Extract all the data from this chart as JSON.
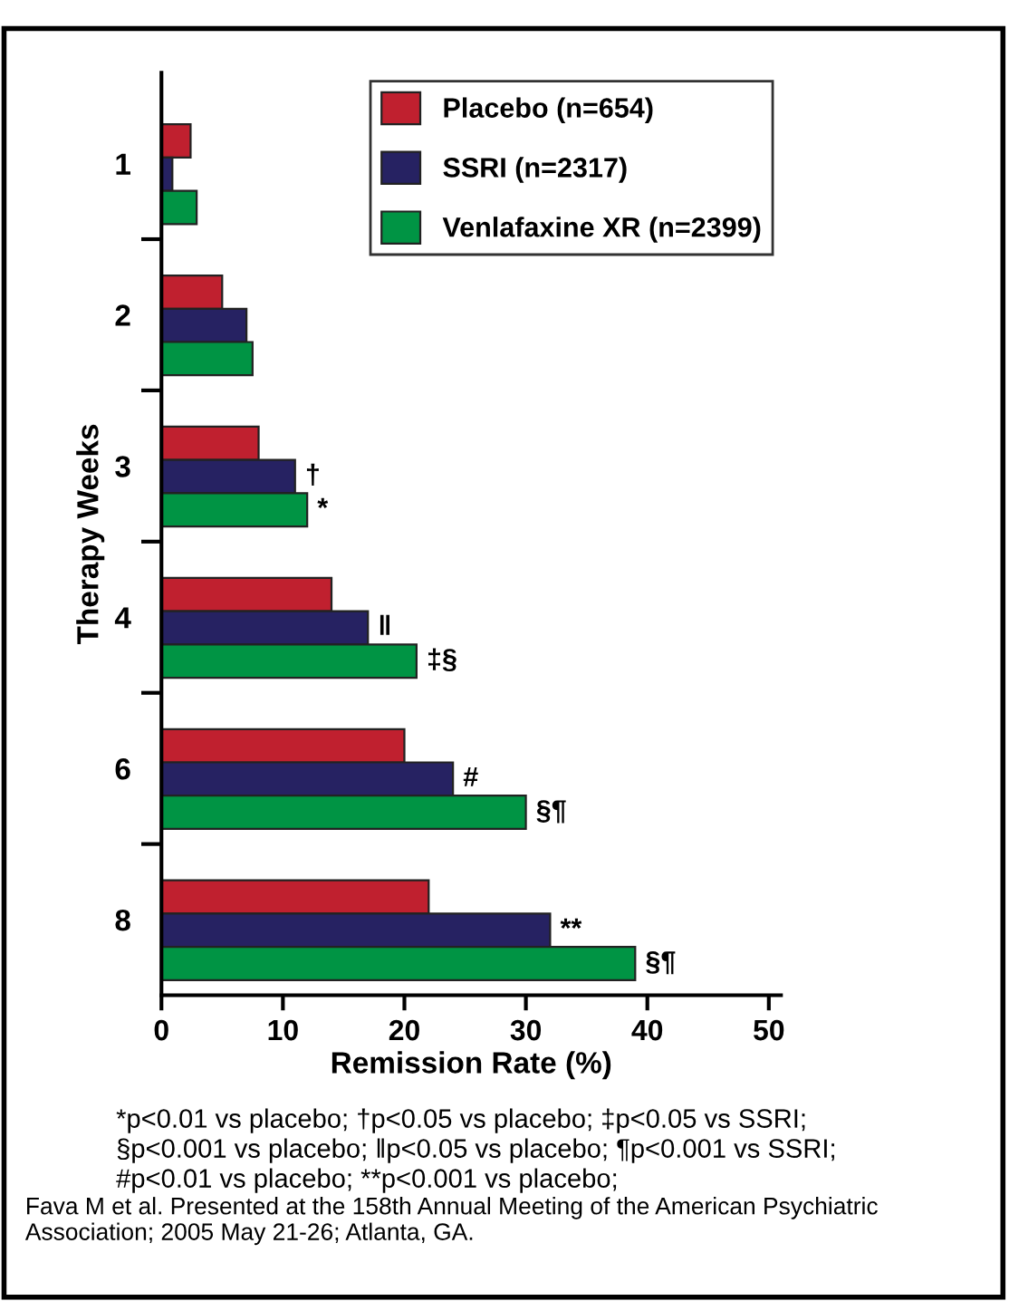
{
  "chart_data": {
    "type": "bar",
    "orientation": "horizontal",
    "categories": [
      "1",
      "2",
      "3",
      "4",
      "6",
      "8"
    ],
    "series": [
      {
        "name": "Placebo (n=654)",
        "color": "#c0202f",
        "values": [
          2.4,
          5,
          8,
          14,
          20,
          22
        ]
      },
      {
        "name": "SSRI (n=2317)",
        "color": "#262262",
        "values": [
          0.9,
          7,
          11,
          17,
          24,
          32
        ],
        "value_labels": [
          null,
          null,
          "†",
          "‖",
          "#",
          "**"
        ]
      },
      {
        "name": "Venlafaxine XR (n=2399)",
        "color": "#009444",
        "values": [
          2.9,
          7.5,
          12,
          21,
          30,
          39
        ],
        "value_labels": [
          null,
          null,
          "*",
          "‡§",
          "§¶",
          "§¶"
        ]
      }
    ],
    "xlabel": "Remission Rate (%)",
    "ylabel": "Therapy Weeks",
    "xlim": [
      0,
      51
    ],
    "xticks": [
      0,
      10,
      20,
      30,
      40,
      50
    ],
    "grid": false,
    "legend": "top right",
    "annotations": [
      "*p<0.01 vs placebo; †p<0.05 vs placebo; ‡p<0.05 vs SSRI;",
      "§p<0.001 vs placebo; ‖p<0.05 vs placebo; ¶p<0.001 vs SSRI;",
      "#p<0.01 vs placebo; **p<0.001 vs placebo;",
      "Fava M et al. Presented at the 158th Annual Meeting of the American Psychiatric Association; 2005 May 21-26; Atlanta, GA."
    ]
  }
}
